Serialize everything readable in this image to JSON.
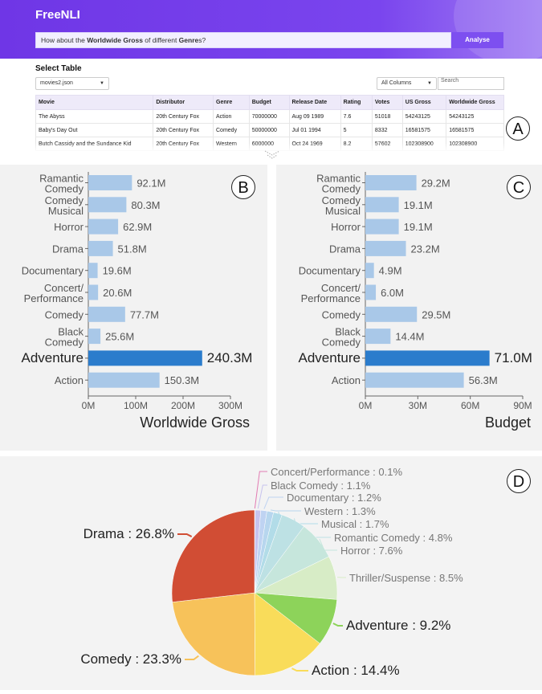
{
  "header": {
    "logo": "FreeNLI",
    "query_prefix": "How about the ",
    "query_bold1": "Worldwide Gross",
    "query_mid": " of different ",
    "query_bold2": "Genre",
    "query_suffix": "s?",
    "analyse_label": "Analyse"
  },
  "table_section": {
    "title": "Select Table",
    "file_select": "movies2.json",
    "columns_select": "All Columns",
    "search_placeholder": "Search",
    "columns": [
      "Movie",
      "Distributor",
      "Genre",
      "Budget",
      "Release Date",
      "Rating",
      "Votes",
      "US Gross",
      "Worldwide Gross"
    ],
    "rows": [
      [
        "The Abyss",
        "20th Century Fox",
        "Action",
        "70000000",
        "Aug 09 1989",
        "7.6",
        "51018",
        "54243125",
        "54243125"
      ],
      [
        "Baby's Day Out",
        "20th Century Fox",
        "Comedy",
        "50000000",
        "Jul 01 1994",
        "5",
        "8332",
        "16581575",
        "16581575"
      ],
      [
        "Butch Cassidy and the Sundance Kid",
        "20th Century Fox",
        "Western",
        "6000000",
        "Oct 24 1969",
        "8.2",
        "57602",
        "102308900",
        "102308900"
      ]
    ]
  },
  "labels": {
    "a": "A",
    "b": "B",
    "c": "C",
    "d": "D"
  },
  "colors": {
    "bar": "#a9c8e8",
    "bar_highlight": "#2b7ccc",
    "header": "#7040e8"
  },
  "chart_data": [
    {
      "type": "bar",
      "orientation": "horizontal",
      "xlabel": "Worldwide Gross",
      "xlim": [
        0,
        300
      ],
      "xticks": [
        "0M",
        "100M",
        "200M",
        "300M"
      ],
      "categories": [
        "Ramantic Comedy",
        "Comedy Musical",
        "Horror",
        "Drama",
        "Documentary",
        "Concert/ Performance",
        "Comedy",
        "Black Comedy",
        "Adventure",
        "Action"
      ],
      "values": [
        92.1,
        80.3,
        62.9,
        51.8,
        19.6,
        20.6,
        77.7,
        25.6,
        240.3,
        150.3
      ],
      "value_labels": [
        "92.1M",
        "80.3M",
        "62.9M",
        "51.8M",
        "19.6M",
        "20.6M",
        "77.7M",
        "25.6M",
        "240.3M",
        "150.3M"
      ],
      "highlight": "Adventure"
    },
    {
      "type": "bar",
      "orientation": "horizontal",
      "xlabel": "Budget",
      "xlim": [
        0,
        90
      ],
      "xticks": [
        "0M",
        "30M",
        "60M",
        "90M"
      ],
      "categories": [
        "Ramantic Comedy",
        "Comedy Musical",
        "Horror",
        "Drama",
        "Documentary",
        "Concert/ Performance",
        "Comedy",
        "Black Comedy",
        "Adventure",
        "Action"
      ],
      "values": [
        29.2,
        19.1,
        19.1,
        23.2,
        4.9,
        6.0,
        29.5,
        14.4,
        71.0,
        56.3
      ],
      "value_labels": [
        "29.2M",
        "19.1M",
        "19.1M",
        "23.2M",
        "4.9M",
        "6.0M",
        "29.5M",
        "14.4M",
        "71.0M",
        "56.3M"
      ],
      "highlight": "Adventure"
    },
    {
      "type": "pie",
      "slices": [
        {
          "name": "Concert/Performance",
          "value": 0.1,
          "label": "Concert/Performance : 0.1%",
          "color": "#f5b8d6"
        },
        {
          "name": "Black Comedy",
          "value": 1.1,
          "label": "Black Comedy : 1.1%",
          "color": "#c7c3ee"
        },
        {
          "name": "Documentary",
          "value": 1.2,
          "label": "Documentary : 1.2%",
          "color": "#bfd3f2"
        },
        {
          "name": "Western",
          "value": 1.3,
          "label": "Western : 1.3%",
          "color": "#b7d6ee"
        },
        {
          "name": "Musical",
          "value": 1.7,
          "label": "Musical : 1.7%",
          "color": "#b2dce8"
        },
        {
          "name": "Romantic Comedy",
          "value": 4.8,
          "label": "Romantic Comedy : 4.8%",
          "color": "#bde1e4"
        },
        {
          "name": "Horror",
          "value": 7.6,
          "label": "Horror : 7.6%",
          "color": "#c6e6dc"
        },
        {
          "name": "Thriller/Suspense",
          "value": 8.5,
          "label": "Thriller/Suspense : 8.5%",
          "color": "#d7ecc6"
        },
        {
          "name": "Adventure",
          "value": 9.2,
          "label": "Adventure : 9.2%",
          "color": "#8dd35a"
        },
        {
          "name": "Action",
          "value": 14.4,
          "label": "Action : 14.4%",
          "color": "#f9dc5a"
        },
        {
          "name": "Comedy",
          "value": 23.3,
          "label": "Comedy : 23.3%",
          "color": "#f7c25a"
        },
        {
          "name": "Drama",
          "value": 26.8,
          "label": "Drama : 26.8%",
          "color": "#d14d34"
        }
      ]
    }
  ]
}
